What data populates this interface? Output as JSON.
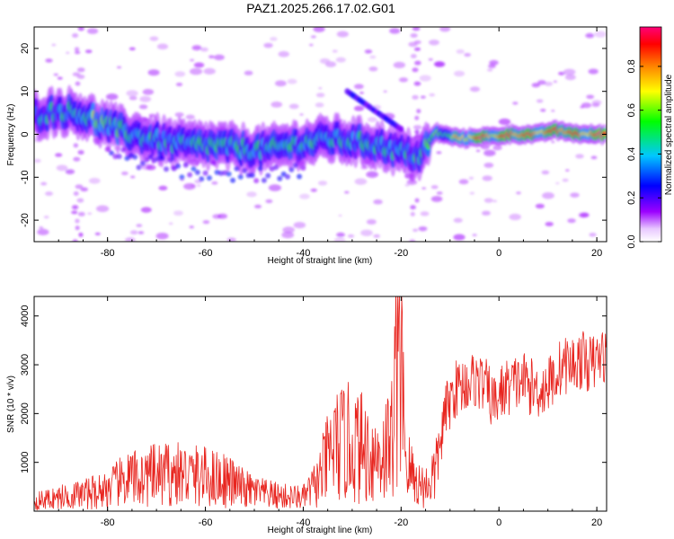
{
  "title": "PAZ1.2025.266.17.02.G01",
  "chart_data": [
    {
      "type": "heatmap",
      "xlabel": "Height of straight line (km)",
      "ylabel": "Frequency (Hz)",
      "xlim": [
        -95,
        22
      ],
      "ylim": [
        -25,
        25
      ],
      "xticks": [
        -80,
        -60,
        -40,
        -20,
        0,
        20
      ],
      "yticks": [
        -20,
        -10,
        0,
        10,
        20
      ],
      "colorbar": {
        "label": "Normalized spectral amplitude",
        "range": [
          0,
          0.98
        ],
        "ticks": [
          0.0,
          0.2,
          0.4,
          0.6,
          0.8
        ],
        "tick_labels": [
          "0.0",
          "0.2",
          "0.4",
          "0.6",
          "0.8"
        ],
        "colormap": [
          "#f0d8ff",
          "#9b00ff",
          "#0000ff",
          "#00c8ff",
          "#00ff00",
          "#ffff00",
          "#ff8000",
          "#ff0000",
          "#ff0078"
        ]
      },
      "ridge": [
        {
          "x": -94,
          "y": 4.5,
          "a": 0.25
        },
        {
          "x": -90,
          "y": 5.5,
          "a": 0.3
        },
        {
          "x": -86,
          "y": 5,
          "a": 0.3
        },
        {
          "x": -83,
          "y": 3.5,
          "a": 0.38
        },
        {
          "x": -79,
          "y": 1.5,
          "a": 0.32
        },
        {
          "x": -75,
          "y": 0,
          "a": 0.3
        },
        {
          "x": -71,
          "y": -1,
          "a": 0.28
        },
        {
          "x": -67,
          "y": -2,
          "a": 0.3
        },
        {
          "x": -63,
          "y": -2.5,
          "a": 0.32
        },
        {
          "x": -59,
          "y": -2.5,
          "a": 0.3
        },
        {
          "x": -55,
          "y": -3,
          "a": 0.33
        },
        {
          "x": -51,
          "y": -3.5,
          "a": 0.3
        },
        {
          "x": -47,
          "y": -3.5,
          "a": 0.28
        },
        {
          "x": -43,
          "y": -2.5,
          "a": 0.3
        },
        {
          "x": -39,
          "y": -2,
          "a": 0.32
        },
        {
          "x": -35,
          "y": -1,
          "a": 0.3
        },
        {
          "x": -31,
          "y": -1.5,
          "a": 0.28
        },
        {
          "x": -27,
          "y": -2,
          "a": 0.3
        },
        {
          "x": -23,
          "y": -3,
          "a": 0.28
        },
        {
          "x": -19,
          "y": -4.5,
          "a": 0.3
        },
        {
          "x": -16,
          "y": -5,
          "a": 0.25
        },
        {
          "x": -13,
          "y": 0.5,
          "a": 0.45
        },
        {
          "x": -10,
          "y": -0.5,
          "a": 0.55
        },
        {
          "x": -7,
          "y": -1,
          "a": 0.65
        },
        {
          "x": -4,
          "y": -0.5,
          "a": 0.85
        },
        {
          "x": -1,
          "y": -0.5,
          "a": 0.7
        },
        {
          "x": 2,
          "y": 0,
          "a": 0.85
        },
        {
          "x": 5,
          "y": 0,
          "a": 0.8
        },
        {
          "x": 8,
          "y": 0,
          "a": 0.75
        },
        {
          "x": 11,
          "y": 1,
          "a": 0.8
        },
        {
          "x": 14,
          "y": 0.5,
          "a": 0.85
        },
        {
          "x": 17,
          "y": 0,
          "a": 0.7
        },
        {
          "x": 20,
          "y": 0,
          "a": 0.85
        }
      ]
    },
    {
      "type": "line",
      "xlabel": "Height of straight line (km)",
      "ylabel": "SNR (10 * v/v)",
      "xlim": [
        -95,
        22
      ],
      "ylim": [
        0,
        4400
      ],
      "xticks": [
        -80,
        -60,
        -40,
        -20,
        0,
        20
      ],
      "yticks": [
        1000,
        2000,
        3000,
        4000
      ],
      "color": "#e8251f",
      "series": [
        {
          "x": [
            -95,
            -90,
            -85,
            -80,
            -76,
            -72,
            -68,
            -64,
            -60,
            -56,
            -52,
            -48,
            -44,
            -40,
            -37,
            -34,
            -31,
            -28,
            -25,
            -22,
            -20.5,
            -19,
            -17,
            -15,
            -13,
            -11,
            -9,
            -7,
            -5,
            -3,
            -1,
            1,
            3,
            5,
            7,
            9,
            11,
            13,
            15,
            17,
            19,
            21,
            22
          ],
          "y": [
            200,
            280,
            350,
            450,
            650,
            700,
            750,
            750,
            700,
            650,
            450,
            350,
            300,
            280,
            600,
            1300,
            1400,
            1300,
            1100,
            1400,
            3800,
            1000,
            600,
            500,
            800,
            2000,
            2500,
            2600,
            2700,
            2600,
            2200,
            2500,
            2600,
            2700,
            2500,
            2500,
            2700,
            3000,
            3000,
            3100,
            3000,
            3200,
            3200
          ]
        }
      ]
    }
  ]
}
